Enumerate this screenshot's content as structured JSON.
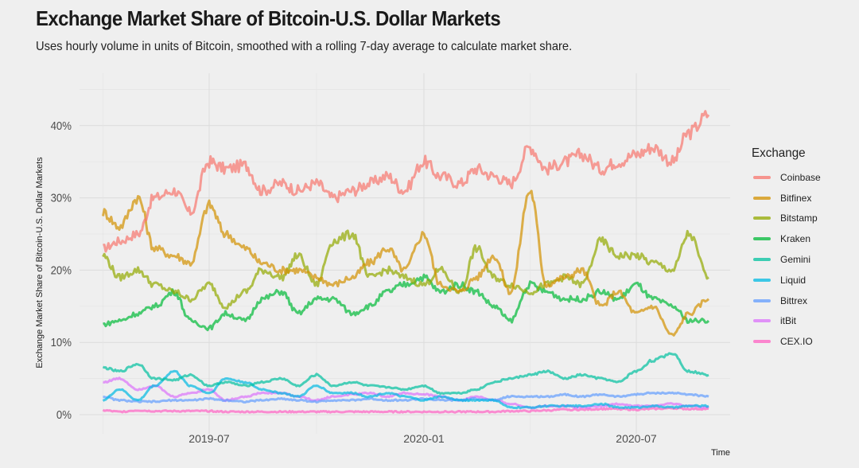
{
  "header": {
    "title": "Exchange Market Share of Bitcoin-U.S. Dollar Markets",
    "subtitle": "Uses hourly volume in units of Bitcoin, smoothed with a rolling 7-day average to calculate market share."
  },
  "chart_data": {
    "type": "line",
    "title": "Exchange Market Share of Bitcoin-U.S. Dollar Markets",
    "subtitle": "Uses hourly volume in units of Bitcoin, smoothed with a rolling 7-day average to calculate market share.",
    "xlabel": "Time",
    "ylabel": "Exchange Market Share of Bitcoin-U.S. Dollar Markets",
    "x_ticks": [
      "2019-07",
      "2020-01",
      "2020-07"
    ],
    "y_ticks": [
      "0%",
      "10%",
      "20%",
      "30%",
      "40%"
    ],
    "ylim": [
      0,
      0.47
    ],
    "xlim": [
      "2019-03-25",
      "2020-09-15"
    ],
    "grid": true,
    "legend": {
      "title": "Exchange",
      "position": "right"
    },
    "x": [
      "2019-04-01",
      "2019-04-15",
      "2019-05-01",
      "2019-05-15",
      "2019-06-01",
      "2019-06-15",
      "2019-07-01",
      "2019-07-15",
      "2019-08-01",
      "2019-08-15",
      "2019-09-01",
      "2019-09-15",
      "2019-10-01",
      "2019-10-15",
      "2019-11-01",
      "2019-11-15",
      "2019-12-01",
      "2019-12-15",
      "2020-01-01",
      "2020-01-15",
      "2020-02-01",
      "2020-02-15",
      "2020-03-01",
      "2020-03-15",
      "2020-04-01",
      "2020-04-15",
      "2020-05-01",
      "2020-05-15",
      "2020-06-01",
      "2020-06-15",
      "2020-07-01",
      "2020-07-15",
      "2020-08-01",
      "2020-08-15",
      "2020-09-01"
    ],
    "series": [
      {
        "name": "Coinbase",
        "color": "#F8766D",
        "values": [
          0.23,
          0.24,
          0.25,
          0.3,
          0.31,
          0.28,
          0.35,
          0.34,
          0.345,
          0.31,
          0.32,
          0.31,
          0.32,
          0.3,
          0.31,
          0.32,
          0.33,
          0.31,
          0.35,
          0.33,
          0.32,
          0.34,
          0.33,
          0.32,
          0.37,
          0.34,
          0.35,
          0.36,
          0.34,
          0.35,
          0.36,
          0.37,
          0.35,
          0.39,
          0.415
        ]
      },
      {
        "name": "Bitfinex",
        "color": "#D39200",
        "values": [
          0.28,
          0.26,
          0.3,
          0.23,
          0.22,
          0.21,
          0.29,
          0.25,
          0.23,
          0.21,
          0.2,
          0.2,
          0.19,
          0.18,
          0.19,
          0.21,
          0.23,
          0.2,
          0.25,
          0.18,
          0.17,
          0.19,
          0.22,
          0.17,
          0.31,
          0.18,
          0.19,
          0.2,
          0.15,
          0.17,
          0.14,
          0.15,
          0.11,
          0.14,
          0.16
        ]
      },
      {
        "name": "Bitstamp",
        "color": "#93AA00",
        "values": [
          0.22,
          0.19,
          0.2,
          0.18,
          0.17,
          0.16,
          0.18,
          0.15,
          0.17,
          0.2,
          0.19,
          0.22,
          0.18,
          0.24,
          0.25,
          0.19,
          0.2,
          0.19,
          0.18,
          0.2,
          0.17,
          0.23,
          0.19,
          0.18,
          0.17,
          0.18,
          0.19,
          0.18,
          0.24,
          0.22,
          0.22,
          0.21,
          0.2,
          0.25,
          0.19
        ]
      },
      {
        "name": "Kraken",
        "color": "#00BA38",
        "values": [
          0.125,
          0.13,
          0.14,
          0.15,
          0.17,
          0.13,
          0.12,
          0.14,
          0.13,
          0.16,
          0.17,
          0.14,
          0.16,
          0.16,
          0.14,
          0.15,
          0.17,
          0.18,
          0.19,
          0.17,
          0.18,
          0.17,
          0.15,
          0.13,
          0.18,
          0.17,
          0.16,
          0.16,
          0.17,
          0.16,
          0.18,
          0.16,
          0.15,
          0.13,
          0.13
        ]
      },
      {
        "name": "Gemini",
        "color": "#00C19F",
        "values": [
          0.065,
          0.06,
          0.07,
          0.05,
          0.048,
          0.055,
          0.04,
          0.045,
          0.04,
          0.045,
          0.05,
          0.04,
          0.055,
          0.04,
          0.045,
          0.04,
          0.038,
          0.035,
          0.04,
          0.03,
          0.03,
          0.035,
          0.045,
          0.05,
          0.055,
          0.06,
          0.05,
          0.055,
          0.05,
          0.045,
          0.06,
          0.075,
          0.085,
          0.06,
          0.055
        ]
      },
      {
        "name": "Liquid",
        "color": "#00B9E3",
        "values": [
          0.02,
          0.035,
          0.02,
          0.04,
          0.06,
          0.04,
          0.03,
          0.05,
          0.045,
          0.035,
          0.03,
          0.025,
          0.04,
          0.03,
          0.03,
          0.025,
          0.03,
          0.025,
          0.02,
          0.025,
          0.02,
          0.02,
          0.02,
          0.01,
          0.01,
          0.012,
          0.012,
          0.012,
          0.015,
          0.01,
          0.01,
          0.012,
          0.01,
          0.012,
          0.012
        ]
      },
      {
        "name": "Bittrex",
        "color": "#619CFF",
        "values": [
          0.025,
          0.02,
          0.018,
          0.018,
          0.02,
          0.02,
          0.022,
          0.02,
          0.018,
          0.02,
          0.022,
          0.02,
          0.018,
          0.02,
          0.02,
          0.022,
          0.02,
          0.02,
          0.022,
          0.02,
          0.02,
          0.022,
          0.02,
          0.025,
          0.025,
          0.025,
          0.028,
          0.025,
          0.028,
          0.025,
          0.028,
          0.03,
          0.03,
          0.028,
          0.025
        ]
      },
      {
        "name": "itBit",
        "color": "#DB72FB",
        "values": [
          0.045,
          0.05,
          0.035,
          0.04,
          0.025,
          0.03,
          0.035,
          0.02,
          0.025,
          0.03,
          0.03,
          0.025,
          0.02,
          0.025,
          0.028,
          0.03,
          0.025,
          0.03,
          0.028,
          0.025,
          0.02,
          0.025,
          0.02,
          0.015,
          0.01,
          0.012,
          0.012,
          0.01,
          0.012,
          0.015,
          0.012,
          0.012,
          0.015,
          0.012,
          0.01
        ]
      },
      {
        "name": "CEX.IO",
        "color": "#FF61C3",
        "values": [
          0.006,
          0.004,
          0.006,
          0.005,
          0.005,
          0.005,
          0.005,
          0.004,
          0.004,
          0.004,
          0.004,
          0.004,
          0.004,
          0.004,
          0.004,
          0.004,
          0.004,
          0.004,
          0.004,
          0.004,
          0.004,
          0.004,
          0.004,
          0.005,
          0.005,
          0.006,
          0.007,
          0.007,
          0.008,
          0.008,
          0.007,
          0.008,
          0.009,
          0.008,
          0.008
        ]
      }
    ]
  }
}
